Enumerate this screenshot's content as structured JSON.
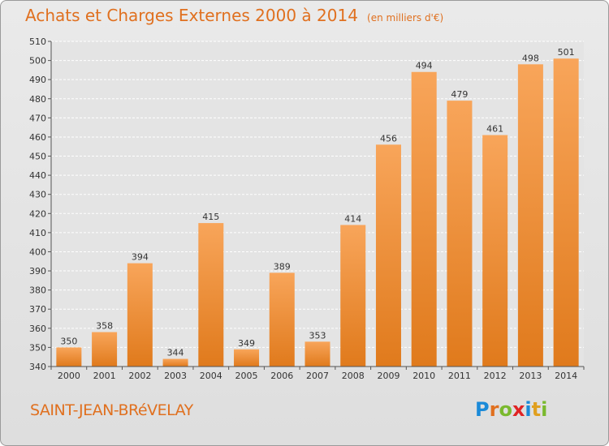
{
  "title": "Achats et Charges Externes 2000 à 2014",
  "subtitle": "(en milliers d'€)",
  "commune": "SAINT-JEAN-BRéVELAY",
  "logo": {
    "text": "Proxiti",
    "letter_colors": [
      "#1b8ad8",
      "#e0701f",
      "#7ab92e",
      "#e02424",
      "#1b8ad8",
      "#e0a020",
      "#7ab92e"
    ]
  },
  "colors": {
    "title": "#e0701f",
    "bar_light": "#f8a55a",
    "bar_dark": "#e07a1c",
    "grid": "#ffffff",
    "axis_text": "#333333"
  },
  "chart_data": {
    "type": "bar",
    "categories": [
      "2000",
      "2001",
      "2002",
      "2003",
      "2004",
      "2005",
      "2006",
      "2007",
      "2008",
      "2009",
      "2010",
      "2011",
      "2012",
      "2013",
      "2014"
    ],
    "values": [
      350,
      358,
      394,
      344,
      415,
      349,
      389,
      353,
      414,
      456,
      494,
      479,
      461,
      498,
      501
    ],
    "ylim": [
      340,
      510
    ],
    "yticks": [
      340,
      350,
      360,
      370,
      380,
      390,
      400,
      410,
      420,
      430,
      440,
      450,
      460,
      470,
      480,
      490,
      500,
      510
    ],
    "grid": true,
    "data_labels": true
  }
}
